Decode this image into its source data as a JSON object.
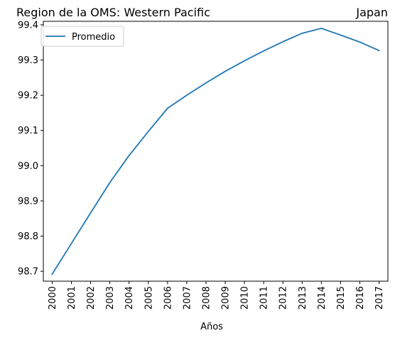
{
  "chart_data": {
    "type": "line",
    "title_left": "Region de la OMS: Western Pacific",
    "title_right": "Japan",
    "xlabel": "Años",
    "ylabel": "",
    "x": [
      "2000",
      "2001",
      "2002",
      "2003",
      "2004",
      "2005",
      "2006",
      "2007",
      "2008",
      "2009",
      "2010",
      "2011",
      "2012",
      "2013",
      "2014",
      "2015",
      "2016",
      "2017"
    ],
    "series": [
      {
        "name": "Promedio",
        "color": "#1f77b4",
        "values": [
          98.692,
          98.779,
          98.866,
          98.952,
          99.029,
          99.097,
          99.163,
          99.2,
          99.235,
          99.268,
          99.298,
          99.326,
          99.352,
          99.376,
          99.39,
          99.371,
          99.351,
          99.327
        ]
      }
    ],
    "yticks": [
      "98.7",
      "98.8",
      "98.9",
      "99.0",
      "99.1",
      "99.2",
      "99.3",
      "99.4"
    ],
    "ylim": [
      98.672,
      99.41
    ],
    "grid": false,
    "legend_position": "upper-left"
  }
}
